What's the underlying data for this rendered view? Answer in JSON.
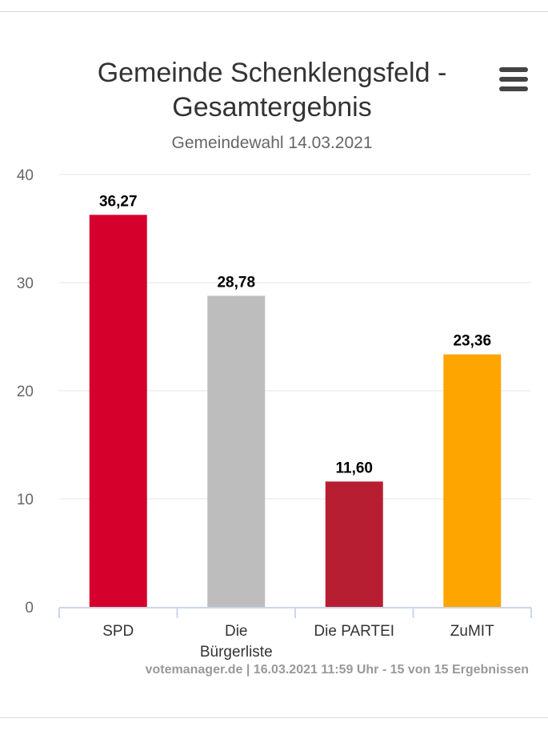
{
  "chart": {
    "title": "Gemeinde Schenklengsfeld - Gesamtergebnis",
    "subtitle": "Gemeindewahl 14.03.2021",
    "credits": "votemanager.de | 16.03.2021 11:59 Uhr - 15 von 15 Ergebnissen",
    "menu_icon": "hamburger-menu-icon"
  },
  "chart_data": {
    "type": "bar",
    "title": "Gemeinde Schenklengsfeld - Gesamtergebnis",
    "subtitle": "Gemeindewahl 14.03.2021",
    "xlabel": "",
    "ylabel": "",
    "ylim": [
      0,
      40
    ],
    "yticks": [
      "0",
      "10",
      "20",
      "30",
      "40"
    ],
    "grid": true,
    "legend": "none",
    "categories": [
      [
        "SPD"
      ],
      [
        "Die",
        "Bürgerliste"
      ],
      [
        "Die PARTEI"
      ],
      [
        "ZuMIT"
      ]
    ],
    "values": [
      36.27,
      28.78,
      11.6,
      23.36
    ],
    "value_labels": [
      "36,27",
      "28,78",
      "11,60",
      "23,36"
    ],
    "colors": [
      "#d5002b",
      "#bdbdbd",
      "#b81e32",
      "#ffa500"
    ]
  }
}
